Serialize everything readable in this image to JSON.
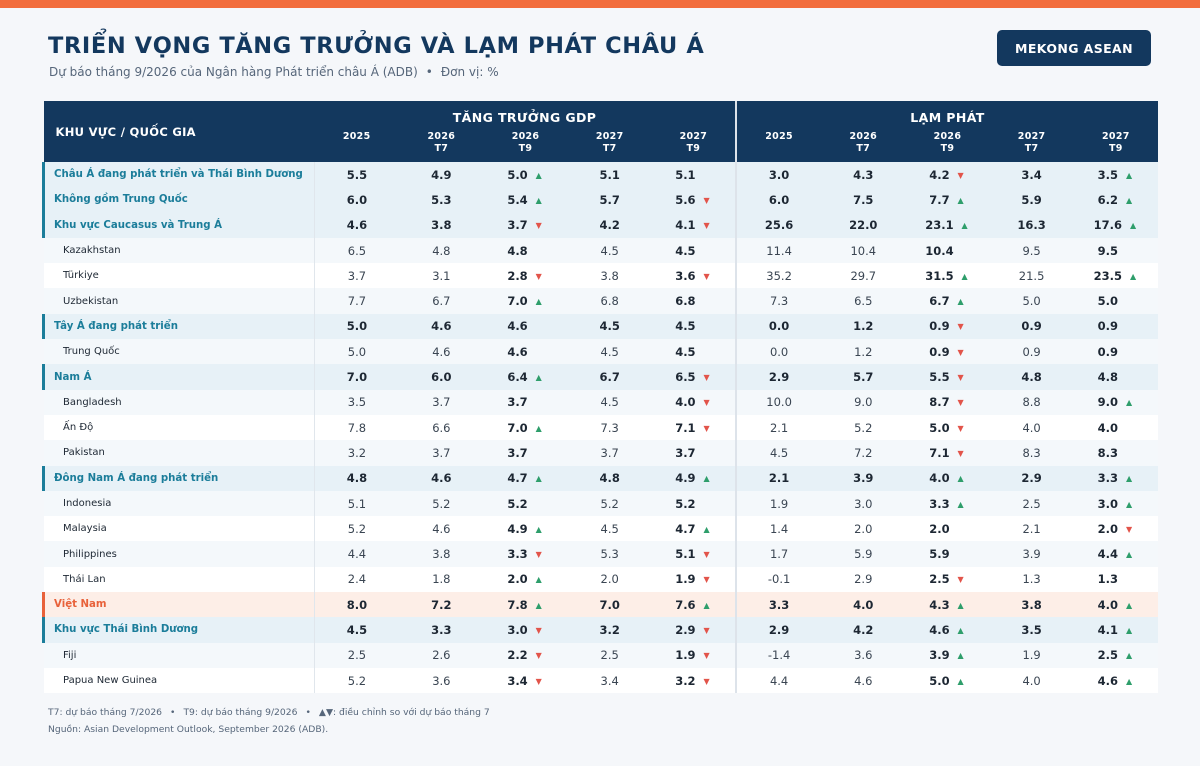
{
  "header": {
    "title": "TRIỂN VỌNG TĂNG TRƯỞNG VÀ LẠM PHÁT CHÂU Á",
    "subtitle_source": "Dự báo tháng 9/2026 của Ngân hàng Phát triển châu Á (ADB)",
    "subtitle_sep": "•",
    "subtitle_unit": "Đơn vị: %",
    "brand": "MEKONG ASEAN"
  },
  "colors": {
    "accent_bar": "#f26d3d",
    "navy": "#13385e",
    "region": "#1b7d9a",
    "vietnam": "#e8613a",
    "up": "#2e9e6b",
    "down": "#e2544a"
  },
  "table": {
    "region_header": "KHU VỰC / QUỐC GIA",
    "group_gdp": "TĂNG TRƯỞNG GDP",
    "group_inflation": "LẠM PHÁT",
    "subcols": [
      {
        "year": "2025",
        "sub": ""
      },
      {
        "year": "2026",
        "sub": "T7"
      },
      {
        "year": "2026",
        "sub": "T9"
      },
      {
        "year": "2027",
        "sub": "T7"
      },
      {
        "year": "2027",
        "sub": "T9"
      },
      {
        "year": "2025",
        "sub": ""
      },
      {
        "year": "2026",
        "sub": "T7"
      },
      {
        "year": "2026",
        "sub": "T9"
      },
      {
        "year": "2027",
        "sub": "T7"
      },
      {
        "year": "2027",
        "sub": "T9"
      }
    ],
    "rows": [
      {
        "type": "reg",
        "name": "Châu Á đang phát triển và Thái Bình Dương",
        "v": [
          "5.5",
          "4.9",
          "5.0",
          "5.1",
          "5.1",
          "3.0",
          "4.3",
          "4.2",
          "3.4",
          "3.5"
        ],
        "a": [
          "",
          "",
          "up",
          "",
          "",
          "",
          "",
          "down",
          "",
          "up"
        ]
      },
      {
        "type": "reg",
        "name": "Không gồm Trung Quốc",
        "v": [
          "6.0",
          "5.3",
          "5.4",
          "5.7",
          "5.6",
          "6.0",
          "7.5",
          "7.7",
          "5.9",
          "6.2"
        ],
        "a": [
          "",
          "",
          "up",
          "",
          "down",
          "",
          "",
          "up",
          "",
          "up"
        ]
      },
      {
        "type": "reg",
        "name": "Khu vực Caucasus và Trung Á",
        "v": [
          "4.6",
          "3.8",
          "3.7",
          "4.2",
          "4.1",
          "25.6",
          "22.0",
          "23.1",
          "16.3",
          "17.6"
        ],
        "a": [
          "",
          "",
          "down",
          "",
          "down",
          "",
          "",
          "up",
          "",
          "up"
        ]
      },
      {
        "type": "cty",
        "name": "Kazakhstan",
        "v": [
          "6.5",
          "4.8",
          "4.8",
          "4.5",
          "4.5",
          "11.4",
          "10.4",
          "10.4",
          "9.5",
          "9.5"
        ],
        "a": [
          "",
          "",
          "",
          "",
          "",
          "",
          "",
          "",
          "",
          ""
        ]
      },
      {
        "type": "cty",
        "name": "Türkiye",
        "v": [
          "3.7",
          "3.1",
          "2.8",
          "3.8",
          "3.6",
          "35.2",
          "29.7",
          "31.5",
          "21.5",
          "23.5"
        ],
        "a": [
          "",
          "",
          "down",
          "",
          "down",
          "",
          "",
          "up",
          "",
          "up"
        ]
      },
      {
        "type": "cty",
        "name": "Uzbekistan",
        "v": [
          "7.7",
          "6.7",
          "7.0",
          "6.8",
          "6.8",
          "7.3",
          "6.5",
          "6.7",
          "5.0",
          "5.0"
        ],
        "a": [
          "",
          "",
          "up",
          "",
          "",
          "",
          "",
          "up",
          "",
          ""
        ]
      },
      {
        "type": "reg",
        "name": "Tây Á đang phát triển",
        "v": [
          "5.0",
          "4.6",
          "4.6",
          "4.5",
          "4.5",
          "0.0",
          "1.2",
          "0.9",
          "0.9",
          "0.9"
        ],
        "a": [
          "",
          "",
          "",
          "",
          "",
          "",
          "",
          "down",
          "",
          ""
        ]
      },
      {
        "type": "cty",
        "name": "Trung Quốc",
        "v": [
          "5.0",
          "4.6",
          "4.6",
          "4.5",
          "4.5",
          "0.0",
          "1.2",
          "0.9",
          "0.9",
          "0.9"
        ],
        "a": [
          "",
          "",
          "",
          "",
          "",
          "",
          "",
          "down",
          "",
          ""
        ]
      },
      {
        "type": "reg",
        "name": "Nam Á",
        "v": [
          "7.0",
          "6.0",
          "6.4",
          "6.7",
          "6.5",
          "2.9",
          "5.7",
          "5.5",
          "4.8",
          "4.8"
        ],
        "a": [
          "",
          "",
          "up",
          "",
          "down",
          "",
          "",
          "down",
          "",
          ""
        ]
      },
      {
        "type": "cty",
        "name": "Bangladesh",
        "v": [
          "3.5",
          "3.7",
          "3.7",
          "4.5",
          "4.0",
          "10.0",
          "9.0",
          "8.7",
          "8.8",
          "9.0"
        ],
        "a": [
          "",
          "",
          "",
          "",
          "down",
          "",
          "",
          "down",
          "",
          "up"
        ]
      },
      {
        "type": "cty",
        "name": "Ấn Độ",
        "v": [
          "7.8",
          "6.6",
          "7.0",
          "7.3",
          "7.1",
          "2.1",
          "5.2",
          "5.0",
          "4.0",
          "4.0"
        ],
        "a": [
          "",
          "",
          "up",
          "",
          "down",
          "",
          "",
          "down",
          "",
          ""
        ]
      },
      {
        "type": "cty",
        "name": "Pakistan",
        "v": [
          "3.2",
          "3.7",
          "3.7",
          "3.7",
          "3.7",
          "4.5",
          "7.2",
          "7.1",
          "8.3",
          "8.3"
        ],
        "a": [
          "",
          "",
          "",
          "",
          "",
          "",
          "",
          "down",
          "",
          ""
        ]
      },
      {
        "type": "reg",
        "name": "Đông Nam Á đang phát triển",
        "v": [
          "4.8",
          "4.6",
          "4.7",
          "4.8",
          "4.9",
          "2.1",
          "3.9",
          "4.0",
          "2.9",
          "3.3"
        ],
        "a": [
          "",
          "",
          "up",
          "",
          "up",
          "",
          "",
          "up",
          "",
          "up"
        ]
      },
      {
        "type": "cty",
        "name": "Indonesia",
        "v": [
          "5.1",
          "5.2",
          "5.2",
          "5.2",
          "5.2",
          "1.9",
          "3.0",
          "3.3",
          "2.5",
          "3.0"
        ],
        "a": [
          "",
          "",
          "",
          "",
          "",
          "",
          "",
          "up",
          "",
          "up"
        ]
      },
      {
        "type": "cty",
        "name": "Malaysia",
        "v": [
          "5.2",
          "4.6",
          "4.9",
          "4.5",
          "4.7",
          "1.4",
          "2.0",
          "2.0",
          "2.1",
          "2.0"
        ],
        "a": [
          "",
          "",
          "up",
          "",
          "up",
          "",
          "",
          "",
          "",
          "down"
        ]
      },
      {
        "type": "cty",
        "name": "Philippines",
        "v": [
          "4.4",
          "3.8",
          "3.3",
          "5.3",
          "5.1",
          "1.7",
          "5.9",
          "5.9",
          "3.9",
          "4.4"
        ],
        "a": [
          "",
          "",
          "down",
          "",
          "down",
          "",
          "",
          "",
          "",
          "up"
        ]
      },
      {
        "type": "cty",
        "name": "Thái Lan",
        "v": [
          "2.4",
          "1.8",
          "2.0",
          "2.0",
          "1.9",
          "-0.1",
          "2.9",
          "2.5",
          "1.3",
          "1.3"
        ],
        "a": [
          "",
          "",
          "up",
          "",
          "down",
          "",
          "",
          "down",
          "",
          ""
        ]
      },
      {
        "type": "vn",
        "name": "Việt Nam",
        "v": [
          "8.0",
          "7.2",
          "7.8",
          "7.0",
          "7.6",
          "3.3",
          "4.0",
          "4.3",
          "3.8",
          "4.0"
        ],
        "a": [
          "",
          "",
          "up",
          "",
          "up",
          "",
          "",
          "up",
          "",
          "up"
        ]
      },
      {
        "type": "reg",
        "name": "Khu vực Thái Bình Dương",
        "v": [
          "4.5",
          "3.3",
          "3.0",
          "3.2",
          "2.9",
          "2.9",
          "4.2",
          "4.6",
          "3.5",
          "4.1"
        ],
        "a": [
          "",
          "",
          "down",
          "",
          "down",
          "",
          "",
          "up",
          "",
          "up"
        ]
      },
      {
        "type": "cty",
        "name": "Fiji",
        "v": [
          "2.5",
          "2.6",
          "2.2",
          "2.5",
          "1.9",
          "-1.4",
          "3.6",
          "3.9",
          "1.9",
          "2.5"
        ],
        "a": [
          "",
          "",
          "down",
          "",
          "down",
          "",
          "",
          "up",
          "",
          "up"
        ]
      },
      {
        "type": "cty",
        "name": "Papua New Guinea",
        "v": [
          "5.2",
          "3.6",
          "3.4",
          "3.4",
          "3.2",
          "4.4",
          "4.6",
          "5.0",
          "4.0",
          "4.6"
        ],
        "a": [
          "",
          "",
          "down",
          "",
          "down",
          "",
          "",
          "up",
          "",
          "up"
        ]
      }
    ]
  },
  "footer": {
    "note_t7": "T7: dự báo tháng 7/2026",
    "note_sep": "•",
    "note_t9": "T9: dự báo tháng 9/2026",
    "note_arrows": "▲▼: điều chỉnh so với dự báo tháng 7",
    "source": "Nguồn: Asian Development Outlook, September 2026 (ADB)."
  }
}
